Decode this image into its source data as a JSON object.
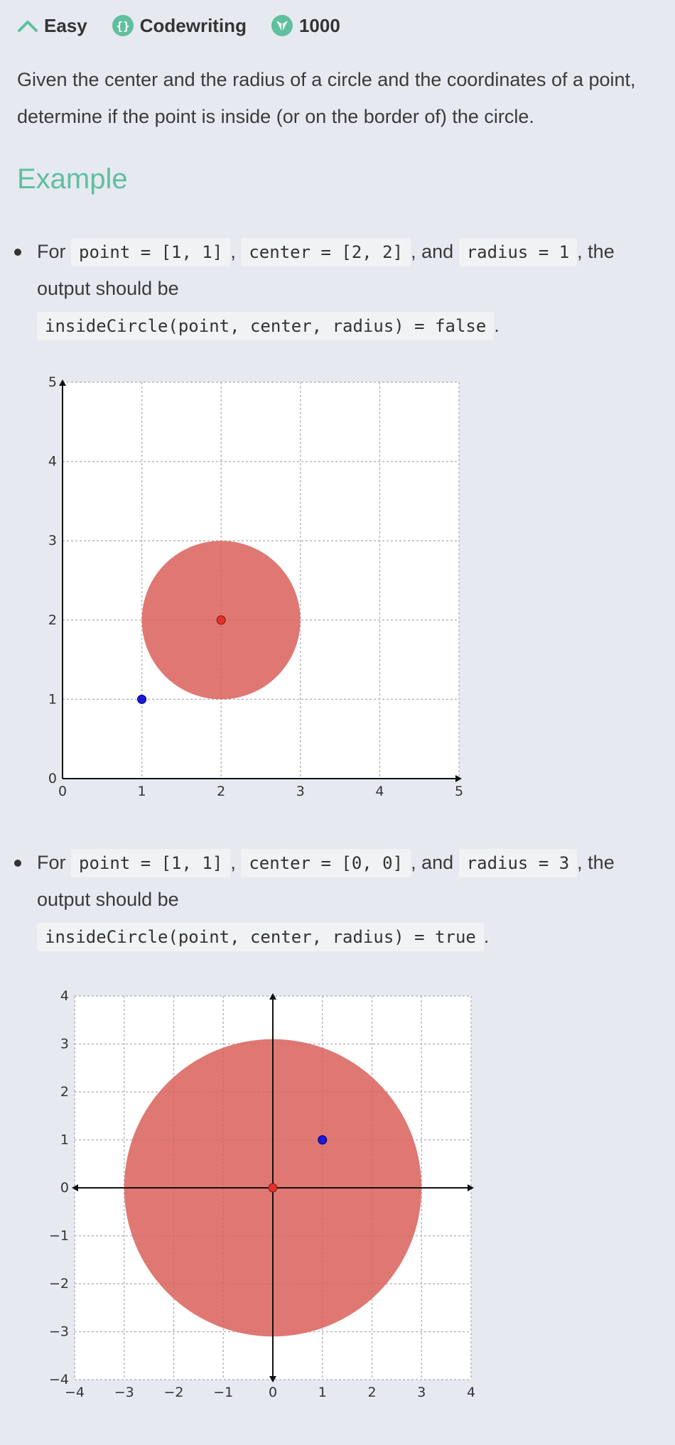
{
  "meta": {
    "difficulty": "Easy",
    "type": "Codewriting",
    "points": "1000"
  },
  "description": {
    "line1": "Given the center and the radius of a circle and the coordinates of a point,",
    "line2": "determine if the point is inside (or on the border of) the circle."
  },
  "example_heading": "Example",
  "examples": [
    {
      "for": "For",
      "point_code": "point = [1, 1]",
      "comma1": ",",
      "center_code": "center = [2, 2]",
      "and": ", and",
      "radius_code": "radius = 1",
      "the": ", the",
      "output_text": "output should be",
      "result_code": "insideCircle(point, center, radius) = false",
      "period": "."
    },
    {
      "for": "For",
      "point_code": "point = [1, 1]",
      "comma1": ",",
      "center_code": "center = [0, 0]",
      "and": ", and",
      "radius_code": "radius = 3",
      "the": ", the",
      "output_text": "output should be",
      "result_code": "insideCircle(point, center, radius) = true",
      "period": "."
    }
  ],
  "chart_data": [
    {
      "type": "scatter",
      "title": "",
      "xlim": [
        0,
        5
      ],
      "ylim": [
        0,
        5
      ],
      "x_ticks": [
        "0",
        "1",
        "2",
        "3",
        "4",
        "5"
      ],
      "y_ticks": [
        "0",
        "1",
        "2",
        "3",
        "4",
        "5"
      ],
      "grid": true,
      "circle": {
        "cx": 2,
        "cy": 2,
        "r": 1,
        "color": "#d9605a"
      },
      "center_point": {
        "x": 2,
        "y": 2,
        "color": "#e0322a"
      },
      "query_point": {
        "x": 1,
        "y": 1,
        "color": "#1a1adc"
      }
    },
    {
      "type": "scatter",
      "title": "",
      "xlim": [
        -4,
        4
      ],
      "ylim": [
        -4,
        4
      ],
      "x_ticks": [
        "−4",
        "−3",
        "−2",
        "−1",
        "0",
        "1",
        "2",
        "3",
        "4"
      ],
      "y_ticks": [
        "−4",
        "−3",
        "−2",
        "−1",
        "0",
        "1",
        "2",
        "3",
        "4"
      ],
      "grid": true,
      "circle": {
        "cx": 0,
        "cy": 0,
        "r": 3,
        "color": "#d9605a"
      },
      "center_point": {
        "x": 0,
        "y": 0,
        "color": "#e0322a"
      },
      "query_point": {
        "x": 1,
        "y": 1,
        "color": "#1a1adc"
      }
    }
  ],
  "colors": {
    "accent": "#5fbf9f",
    "background": "#e6eaf0",
    "code_bg": "#f1f2f4"
  }
}
